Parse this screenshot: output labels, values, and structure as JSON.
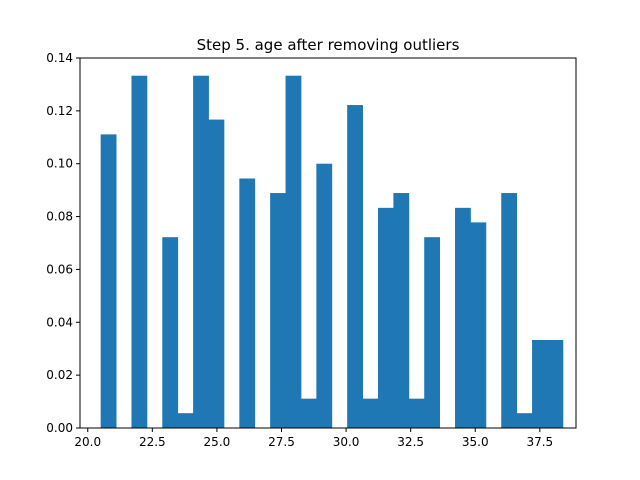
{
  "chart_data": {
    "type": "bar",
    "title": "Step 5. age after removing outliers",
    "xlabel": "",
    "ylabel": "",
    "xlim": [
      19.7,
      38.9
    ],
    "ylim": [
      0,
      0.14
    ],
    "grid": false,
    "bar_color": "#1f77b4",
    "bin_width": 0.5964,
    "bin_start": 20.5,
    "bar_values": [
      0.1111,
      0,
      0.1333,
      0,
      0.0722,
      0.0056,
      0.1333,
      0.1167,
      0,
      0.0944,
      0,
      0.0889,
      0.1333,
      0.0111,
      0.1,
      0,
      0.1222,
      0.0111,
      0.0833,
      0.0889,
      0.0111,
      0.0722,
      0,
      0.0833,
      0.0778,
      0,
      0.0889,
      0.0056,
      0.0333,
      0.0333
    ],
    "x_ticks": [
      20.0,
      22.5,
      25.0,
      27.5,
      30.0,
      32.5,
      35.0,
      37.5
    ],
    "x_tick_labels": [
      "20.0",
      "22.5",
      "25.0",
      "27.5",
      "30.0",
      "32.5",
      "35.0",
      "37.5"
    ],
    "y_ticks": [
      0.0,
      0.02,
      0.04,
      0.06,
      0.08,
      0.1,
      0.12,
      0.14
    ],
    "y_tick_labels": [
      "0.00",
      "0.02",
      "0.04",
      "0.06",
      "0.08",
      "0.10",
      "0.12",
      "0.14"
    ]
  }
}
